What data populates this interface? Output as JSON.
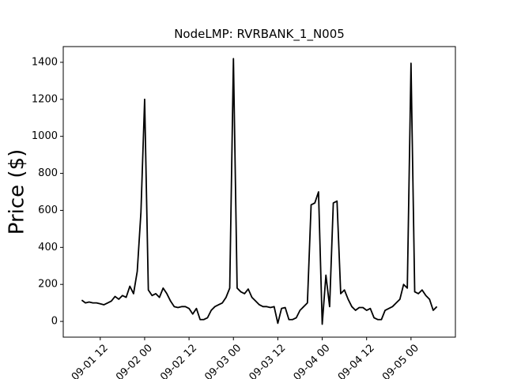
{
  "chart_data": {
    "type": "line",
    "title": "NodeLMP: RVRBANK_1_N005",
    "y_label": "Price ($)",
    "color": "#000000",
    "x": [
      "09-01 07",
      "09-01 08",
      "09-01 09",
      "09-01 10",
      "09-01 11",
      "09-01 12",
      "09-01 13",
      "09-01 14",
      "09-01 15",
      "09-01 16",
      "09-01 17",
      "09-01 18",
      "09-01 19",
      "09-01 20",
      "09-01 21",
      "09-01 22",
      "09-01 23",
      "09-02 00",
      "09-02 01",
      "09-02 02",
      "09-02 03",
      "09-02 04",
      "09-02 05",
      "09-02 06",
      "09-02 07",
      "09-02 08",
      "09-02 09",
      "09-02 10",
      "09-02 11",
      "09-02 12",
      "09-02 13",
      "09-02 14",
      "09-02 15",
      "09-02 16",
      "09-02 17",
      "09-02 18",
      "09-02 19",
      "09-02 20",
      "09-02 21",
      "09-02 22",
      "09-02 23",
      "09-03 00",
      "09-03 01",
      "09-03 02",
      "09-03 03",
      "09-03 04",
      "09-03 05",
      "09-03 06",
      "09-03 07",
      "09-03 08",
      "09-03 09",
      "09-03 10",
      "09-03 11",
      "09-03 12",
      "09-03 13",
      "09-03 14",
      "09-03 15",
      "09-03 16",
      "09-03 17",
      "09-03 18",
      "09-03 19",
      "09-03 20",
      "09-03 21",
      "09-03 22",
      "09-03 23",
      "09-04 00",
      "09-04 01",
      "09-04 02",
      "09-04 03",
      "09-04 04",
      "09-04 05",
      "09-04 06",
      "09-04 07",
      "09-04 08",
      "09-04 09",
      "09-04 10",
      "09-04 11",
      "09-04 12",
      "09-04 13",
      "09-04 14",
      "09-04 15",
      "09-04 16",
      "09-04 17",
      "09-04 18",
      "09-04 19",
      "09-04 20",
      "09-04 21",
      "09-04 22",
      "09-04 23",
      "09-05 00",
      "09-05 01",
      "09-05 02",
      "09-05 03",
      "09-05 04",
      "09-05 05",
      "09-05 06",
      "09-05 07"
    ],
    "values": [
      115,
      100,
      105,
      100,
      100,
      95,
      90,
      100,
      110,
      135,
      120,
      140,
      130,
      190,
      150,
      270,
      590,
      1200,
      170,
      140,
      150,
      130,
      180,
      150,
      110,
      80,
      75,
      80,
      80,
      70,
      40,
      70,
      10,
      10,
      20,
      60,
      80,
      90,
      100,
      130,
      180,
      1420,
      180,
      160,
      150,
      175,
      130,
      110,
      90,
      80,
      80,
      75,
      80,
      -10,
      70,
      75,
      10,
      10,
      20,
      60,
      80,
      100,
      630,
      640,
      700,
      -15,
      250,
      80,
      640,
      650,
      150,
      170,
      120,
      80,
      60,
      75,
      75,
      60,
      70,
      20,
      10,
      10,
      60,
      70,
      80,
      100,
      120,
      200,
      180,
      1395,
      160,
      150,
      170,
      140,
      120,
      60,
      80
    ],
    "xlim": [
      "09-01 02",
      "09-05 12"
    ],
    "xticks": [
      "09-01 12",
      "09-02 00",
      "09-02 12",
      "09-03 00",
      "09-03 12",
      "09-04 00",
      "09-04 12",
      "09-05 00"
    ],
    "ylim": [
      -85,
      1485
    ],
    "yticks": [
      0,
      200,
      400,
      600,
      800,
      1000,
      1200,
      1400
    ]
  }
}
